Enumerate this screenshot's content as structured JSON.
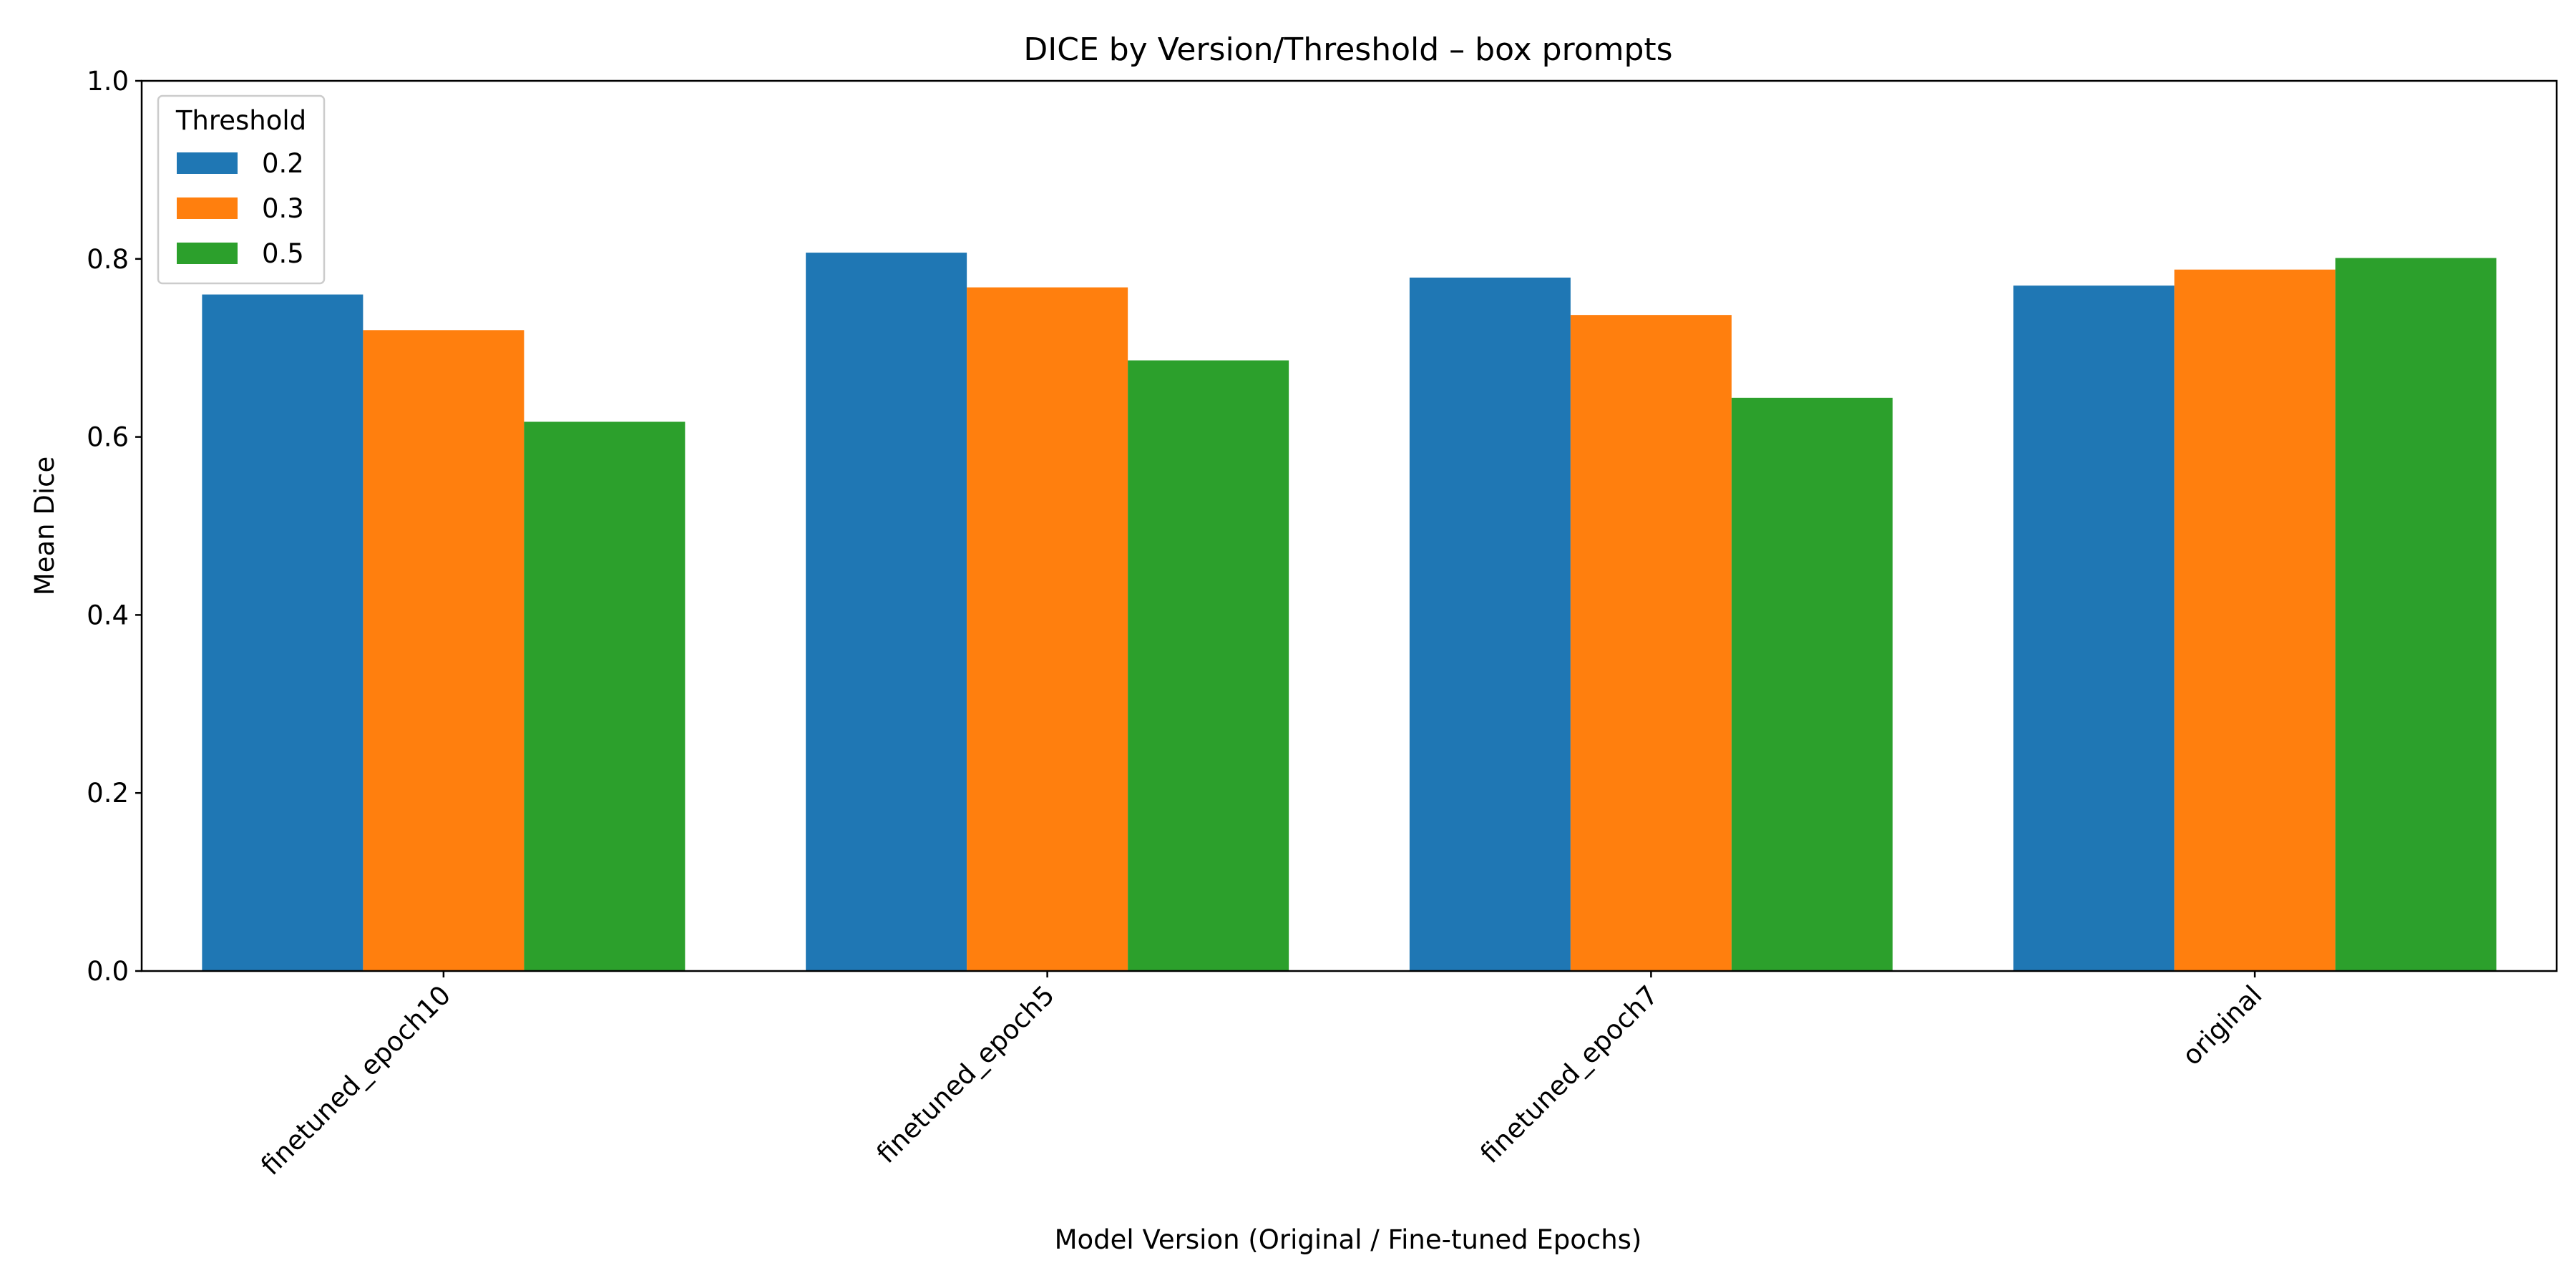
{
  "chart_data": {
    "type": "bar",
    "title": "DICE by Version/Threshold – box prompts",
    "xlabel": "Model Version (Original / Fine-tuned Epochs)",
    "ylabel": "Mean Dice",
    "ylim": [
      0,
      1.0
    ],
    "yticks": [
      "0.0",
      "0.2",
      "0.4",
      "0.6",
      "0.8",
      "1.0"
    ],
    "categories": [
      "finetuned_epoch10",
      "finetuned_epoch5",
      "finetuned_epoch7",
      "original"
    ],
    "legend_title": "Threshold",
    "legend_position": "top-left",
    "grid": false,
    "series": [
      {
        "name": "0.2",
        "color": "#1f77b4",
        "values": [
          0.76,
          0.807,
          0.779,
          0.77
        ]
      },
      {
        "name": "0.3",
        "color": "#ff7f0e",
        "values": [
          0.72,
          0.768,
          0.737,
          0.788
        ]
      },
      {
        "name": "0.5",
        "color": "#2ca02c",
        "values": [
          0.617,
          0.686,
          0.644,
          0.801
        ]
      }
    ]
  }
}
